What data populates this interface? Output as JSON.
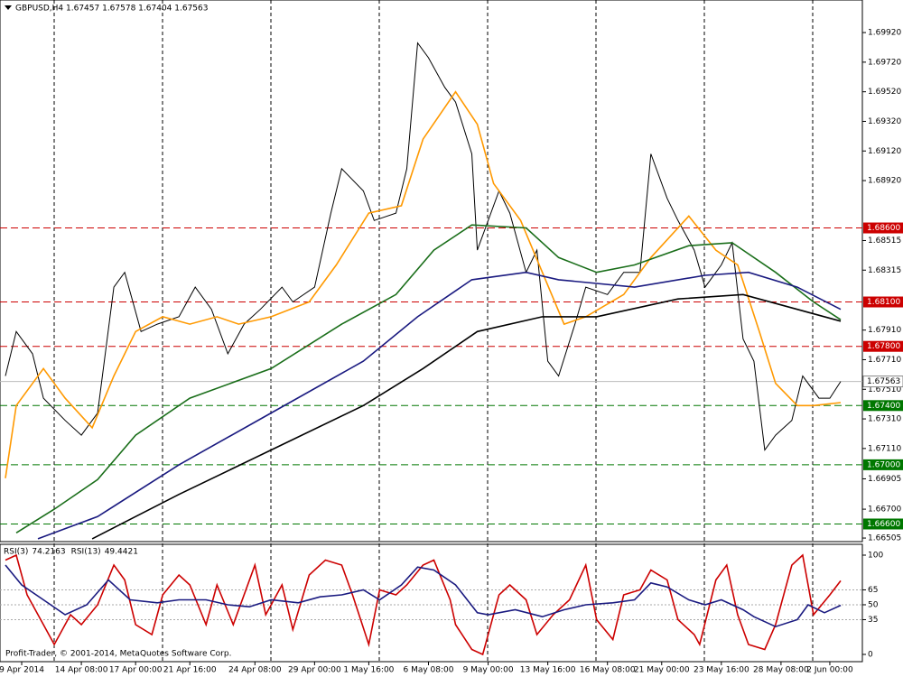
{
  "header": "GBPUSD,H4 1.67457 1.67578 1.67404 1.67563",
  "footer": "Profit-Trader, © 2001-2014, MetaQuotes Software Corp.",
  "chart_data": [
    {
      "type": "line",
      "xlim": [
        0,
        159
      ],
      "ylim": [
        1.66481,
        1.7014
      ],
      "xticks": [
        {
          "value": 4,
          "label": "9 Apr 2014"
        },
        {
          "value": 15,
          "label": "14 Apr 08:00"
        },
        {
          "value": 25,
          "label": "17 Apr 00:00"
        },
        {
          "value": 35,
          "label": "21 Apr 16:00"
        },
        {
          "value": 47,
          "label": "24 Apr 08:00"
        },
        {
          "value": 58,
          "label": "29 Apr 00:00"
        },
        {
          "value": 68,
          "label": "1 May 16:00"
        },
        {
          "value": 79,
          "label": "6 May 08:00"
        },
        {
          "value": 90,
          "label": "9 May 00:00"
        },
        {
          "value": 101,
          "label": "13 May 16:00"
        },
        {
          "value": 112,
          "label": "16 May 08:00"
        },
        {
          "value": 122,
          "label": "21 May 00:00"
        },
        {
          "value": 133,
          "label": "23 May 16:00"
        },
        {
          "value": 144,
          "label": "28 May 08:00"
        },
        {
          "value": 153,
          "label": "2 Jun 00:00"
        }
      ],
      "yticks": [
        {
          "value": 1.6992,
          "label": "1.69920"
        },
        {
          "value": 1.6972,
          "label": "1.69720"
        },
        {
          "value": 1.6952,
          "label": "1.69520"
        },
        {
          "value": 1.6932,
          "label": "1.69320"
        },
        {
          "value": 1.6912,
          "label": "1.69120"
        },
        {
          "value": 1.6892,
          "label": "1.68920"
        },
        {
          "value": 1.68515,
          "label": "1.68515"
        },
        {
          "value": 1.68315,
          "label": "1.68315"
        },
        {
          "value": 1.6791,
          "label": "1.67910"
        },
        {
          "value": 1.6771,
          "label": "1.67710"
        },
        {
          "value": 1.6751,
          "label": "1.67510"
        },
        {
          "value": 1.6731,
          "label": "1.67310"
        },
        {
          "value": 1.6711,
          "label": "1.67110"
        },
        {
          "value": 1.66905,
          "label": "1.66905"
        },
        {
          "value": 1.667,
          "label": "1.66700"
        },
        {
          "value": 1.66505,
          "label": "1.66505"
        }
      ],
      "levels": [
        {
          "value": 1.686,
          "label": "1.68600",
          "color": "#cc0000"
        },
        {
          "value": 1.681,
          "label": "1.68100",
          "color": "#cc0000"
        },
        {
          "value": 1.678,
          "label": "1.67800",
          "color": "#cc0000"
        },
        {
          "value": 1.674,
          "label": "1.67400",
          "color": "#007700"
        },
        {
          "value": 1.67,
          "label": "1.67000",
          "color": "#007700"
        },
        {
          "value": 1.666,
          "label": "1.66600",
          "color": "#007700"
        }
      ],
      "current": {
        "value": 1.67563,
        "label": "1.67563"
      },
      "series": [
        {
          "color": "#000000",
          "x": [
            1,
            3,
            6,
            8,
            12,
            15,
            18,
            21,
            23,
            26,
            29,
            33,
            36,
            39,
            42,
            45,
            48,
            52,
            54,
            58,
            61,
            63,
            67,
            69,
            73,
            75,
            77,
            79,
            82,
            84,
            87,
            88,
            92,
            94,
            97,
            99,
            101,
            103,
            106,
            108,
            112,
            115,
            118,
            120,
            123,
            125,
            128,
            130,
            133,
            135,
            137,
            139,
            141,
            143,
            146,
            148,
            151,
            153,
            155
          ],
          "values": [
            1.676,
            1.679,
            1.6775,
            1.6745,
            1.673,
            1.672,
            1.6735,
            1.682,
            1.683,
            1.679,
            1.6795,
            1.68,
            1.682,
            1.6805,
            1.6775,
            1.6795,
            1.6805,
            1.682,
            1.681,
            1.682,
            1.687,
            1.69,
            1.6885,
            1.6865,
            1.687,
            1.69,
            1.6985,
            1.6975,
            1.6955,
            1.6945,
            1.691,
            1.6845,
            1.6885,
            1.687,
            1.683,
            1.6845,
            1.677,
            1.676,
            1.6795,
            1.682,
            1.6815,
            1.683,
            1.683,
            1.691,
            1.688,
            1.6865,
            1.6845,
            1.682,
            1.6835,
            1.685,
            1.6785,
            1.677,
            1.671,
            1.672,
            1.673,
            1.676,
            1.6745,
            1.6745,
            1.67563
          ]
        },
        {
          "color": "#ff9900",
          "x": [
            1,
            3,
            8,
            12,
            17,
            21,
            25,
            30,
            35,
            40,
            44,
            50,
            57,
            62,
            68,
            74,
            78,
            84,
            88,
            91,
            96,
            100,
            104,
            108,
            115,
            120,
            127,
            132,
            136,
            140,
            143,
            147,
            150,
            155
          ],
          "values": [
            1.6691,
            1.674,
            1.6765,
            1.6745,
            1.6725,
            1.676,
            1.679,
            1.68,
            1.6795,
            1.68,
            1.6795,
            1.68,
            1.681,
            1.6835,
            1.687,
            1.6875,
            1.692,
            1.6952,
            1.693,
            1.689,
            1.6865,
            1.683,
            1.6795,
            1.68,
            1.6815,
            1.684,
            1.6868,
            1.6845,
            1.6835,
            1.679,
            1.6755,
            1.674,
            1.674,
            1.6742
          ]
        },
        {
          "color": "#1a6e1a",
          "x": [
            3,
            10,
            18,
            25,
            35,
            50,
            63,
            73,
            80,
            87,
            97,
            103,
            110,
            117,
            127,
            135,
            143,
            150,
            155
          ],
          "values": [
            1.6654,
            1.667,
            1.669,
            1.672,
            1.6745,
            1.6765,
            1.6795,
            1.6815,
            1.6845,
            1.6862,
            1.686,
            1.684,
            1.683,
            1.6835,
            1.6848,
            1.685,
            1.683,
            1.681,
            1.6798
          ]
        },
        {
          "color": "#1a1a80",
          "x": [
            7,
            18,
            33,
            50,
            67,
            77,
            87,
            97,
            103,
            117,
            130,
            138,
            147,
            155
          ],
          "values": [
            1.665,
            1.6665,
            1.67,
            1.6735,
            1.677,
            1.68,
            1.6825,
            1.683,
            1.6825,
            1.682,
            1.6828,
            1.683,
            1.682,
            1.6805
          ]
        },
        {
          "color": "#000000",
          "x": [
            17,
            33,
            50,
            67,
            78,
            88,
            100,
            110,
            125,
            137,
            147,
            155
          ],
          "values": [
            1.665,
            1.668,
            1.671,
            1.674,
            1.6765,
            1.679,
            1.68,
            1.68,
            1.6812,
            1.6815,
            1.6805,
            1.6797
          ]
        }
      ]
    },
    {
      "type": "line",
      "xlim": [
        0,
        159
      ],
      "ylim": [
        -7.3,
        110.9
      ],
      "yticks": [
        100,
        65,
        50,
        35,
        0
      ],
      "series": [
        {
          "name": "RSI(3)",
          "current": 74.2163,
          "color": "#cc0000",
          "x": [
            1,
            3,
            5,
            8,
            10,
            13,
            15,
            18,
            21,
            23,
            25,
            28,
            30,
            33,
            35,
            38,
            40,
            43,
            47,
            49,
            52,
            54,
            57,
            60,
            63,
            65,
            68,
            70,
            73,
            75,
            78,
            80,
            83,
            84,
            87,
            89,
            92,
            94,
            97,
            99,
            102,
            105,
            108,
            110,
            113,
            115,
            118,
            120,
            123,
            125,
            128,
            129,
            132,
            134,
            136,
            138,
            141,
            143,
            146,
            148,
            150,
            153,
            155
          ],
          "values": [
            95,
            100,
            60,
            30,
            10,
            40,
            30,
            50,
            90,
            75,
            30,
            20,
            60,
            80,
            70,
            30,
            70,
            30,
            90,
            40,
            70,
            25,
            80,
            95,
            90,
            60,
            10,
            65,
            60,
            70,
            90,
            95,
            55,
            30,
            5,
            0,
            60,
            70,
            55,
            20,
            40,
            55,
            90,
            35,
            15,
            60,
            65,
            85,
            75,
            35,
            20,
            10,
            75,
            90,
            40,
            10,
            5,
            30,
            90,
            100,
            40,
            60,
            74.2
          ]
        },
        {
          "name": "RSI(13)",
          "current": 49.4421,
          "color": "#1a1a80",
          "x": [
            1,
            4,
            8,
            12,
            16,
            20,
            24,
            29,
            33,
            38,
            42,
            46,
            50,
            55,
            59,
            63,
            67,
            70,
            74,
            77,
            80,
            84,
            88,
            90,
            95,
            100,
            104,
            108,
            113,
            117,
            120,
            123,
            127,
            130,
            133,
            137,
            139,
            143,
            147,
            149,
            152,
            155
          ],
          "values": [
            90,
            70,
            55,
            40,
            50,
            75,
            55,
            52,
            55,
            55,
            50,
            48,
            55,
            52,
            58,
            60,
            65,
            55,
            70,
            88,
            85,
            70,
            42,
            40,
            45,
            38,
            45,
            50,
            52,
            55,
            72,
            68,
            55,
            50,
            55,
            45,
            38,
            28,
            35,
            50,
            42,
            49.4
          ]
        }
      ]
    }
  ]
}
